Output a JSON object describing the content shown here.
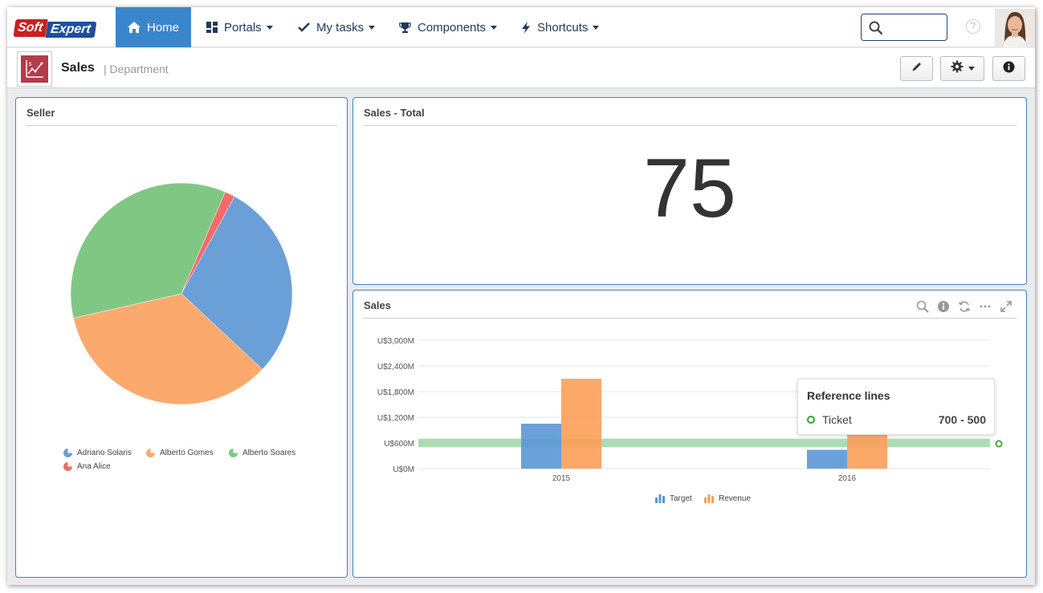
{
  "logo": {
    "part1": "Soft",
    "part2": "Expert"
  },
  "nav": {
    "home": "Home",
    "portals": "Portals",
    "my_tasks": "My tasks",
    "components": "Components",
    "shortcuts": "Shortcuts"
  },
  "search": {
    "placeholder": ""
  },
  "help_glyph": "?",
  "page": {
    "title": "Sales",
    "subtitle": "| Department"
  },
  "panels": {
    "seller": {
      "title": "Seller"
    },
    "total": {
      "title": "Sales - Total",
      "value": "75"
    },
    "sales": {
      "title": "Sales"
    }
  },
  "colors": {
    "accent": "#3a86cd",
    "navy": "#1e3a5c",
    "pie": [
      "#6a9fd8",
      "#fca96d",
      "#81c784",
      "#f26b6b"
    ],
    "target": "#5b97d5",
    "revenue": "#fb9e58",
    "refline": "#a8dbb0"
  },
  "pie_legend": [
    "Adriano Solaris",
    "Alberto Gomes",
    "Alberto Soares",
    "Ana Alice"
  ],
  "chart_data": [
    {
      "type": "pie",
      "title": "Seller",
      "categories": [
        "Adriano Solaris",
        "Alberto Gomes",
        "Alberto Soares",
        "Ana Alice"
      ],
      "values": [
        29,
        34.5,
        35,
        1.5
      ],
      "legend": "bottom"
    },
    {
      "type": "bar",
      "title": "Sales",
      "categories": [
        "2015",
        "2016"
      ],
      "series": [
        {
          "name": "Target",
          "values": [
            1050,
            440
          ]
        },
        {
          "name": "Revenue",
          "values": [
            2100,
            790
          ]
        }
      ],
      "y_ticks": [
        "U$0M",
        "U$600M",
        "U$1,200M",
        "U$1,800M",
        "U$2,400M",
        "U$3,000M"
      ],
      "ylim": [
        0,
        3000
      ],
      "grid": true,
      "legend": "bottom",
      "reference_line": {
        "name": "Ticket",
        "from": 500,
        "to": 700,
        "label": "700 - 500"
      },
      "tooltip_title": "Reference lines"
    }
  ]
}
